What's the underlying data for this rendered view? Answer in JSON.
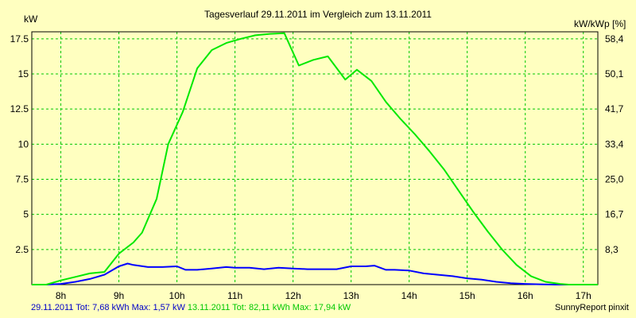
{
  "chart_data": {
    "type": "line",
    "title": "Tagesverlauf 29.11.2011 im Vergleich zum 13.11.2011",
    "ylabel_left": "kW",
    "ylabel_right": "kW/kWp [%]",
    "x_ticks": [
      "8h",
      "9h",
      "10h",
      "11h",
      "12h",
      "13h",
      "14h",
      "15h",
      "16h",
      "17h"
    ],
    "y_ticks_left": [
      "2.5",
      "5",
      "7.5",
      "10",
      "12.5",
      "15",
      "17.5"
    ],
    "y_ticks_right": [
      "8,3",
      "16,7",
      "25,0",
      "33,4",
      "41,7",
      "50,1",
      "58,4"
    ],
    "xlim": [
      7.5,
      17.25
    ],
    "ylim": [
      0,
      18
    ],
    "grid": true,
    "series": [
      {
        "name": "29.11.2011",
        "color": "#0000ff",
        "points": [
          [
            7.5,
            0
          ],
          [
            7.75,
            0
          ],
          [
            8.0,
            0.05
          ],
          [
            8.25,
            0.2
          ],
          [
            8.5,
            0.4
          ],
          [
            8.75,
            0.7
          ],
          [
            9.0,
            1.3
          ],
          [
            9.15,
            1.5
          ],
          [
            9.25,
            1.4
          ],
          [
            9.5,
            1.25
          ],
          [
            9.75,
            1.25
          ],
          [
            10.0,
            1.3
          ],
          [
            10.15,
            1.05
          ],
          [
            10.35,
            1.05
          ],
          [
            10.6,
            1.15
          ],
          [
            10.85,
            1.25
          ],
          [
            11.0,
            1.2
          ],
          [
            11.25,
            1.2
          ],
          [
            11.5,
            1.1
          ],
          [
            11.75,
            1.2
          ],
          [
            12.0,
            1.15
          ],
          [
            12.25,
            1.1
          ],
          [
            12.5,
            1.1
          ],
          [
            12.75,
            1.1
          ],
          [
            13.0,
            1.3
          ],
          [
            13.25,
            1.3
          ],
          [
            13.4,
            1.35
          ],
          [
            13.6,
            1.05
          ],
          [
            13.75,
            1.05
          ],
          [
            14.0,
            1.0
          ],
          [
            14.25,
            0.8
          ],
          [
            14.5,
            0.7
          ],
          [
            14.75,
            0.6
          ],
          [
            15.0,
            0.45
          ],
          [
            15.25,
            0.35
          ],
          [
            15.5,
            0.2
          ],
          [
            15.75,
            0.1
          ],
          [
            16.0,
            0.05
          ],
          [
            16.25,
            0.02
          ],
          [
            16.5,
            0
          ],
          [
            17.25,
            0
          ]
        ]
      },
      {
        "name": "13.11.2011",
        "color": "#00e800",
        "points": [
          [
            7.5,
            0
          ],
          [
            7.75,
            0
          ],
          [
            8.0,
            0.3
          ],
          [
            8.25,
            0.55
          ],
          [
            8.5,
            0.8
          ],
          [
            8.75,
            0.9
          ],
          [
            9.0,
            2.2
          ],
          [
            9.25,
            3.0
          ],
          [
            9.4,
            3.7
          ],
          [
            9.65,
            6.1
          ],
          [
            9.85,
            10.0
          ],
          [
            10.1,
            12.3
          ],
          [
            10.35,
            15.4
          ],
          [
            10.6,
            16.7
          ],
          [
            10.85,
            17.2
          ],
          [
            11.1,
            17.5
          ],
          [
            11.35,
            17.75
          ],
          [
            11.6,
            17.85
          ],
          [
            11.85,
            17.9
          ],
          [
            12.1,
            15.6
          ],
          [
            12.35,
            16.0
          ],
          [
            12.6,
            16.25
          ],
          [
            12.9,
            14.6
          ],
          [
            13.1,
            15.3
          ],
          [
            13.35,
            14.5
          ],
          [
            13.6,
            13.0
          ],
          [
            13.85,
            11.8
          ],
          [
            14.1,
            10.7
          ],
          [
            14.35,
            9.5
          ],
          [
            14.6,
            8.2
          ],
          [
            14.85,
            6.7
          ],
          [
            15.1,
            5.2
          ],
          [
            15.35,
            3.8
          ],
          [
            15.6,
            2.5
          ],
          [
            15.85,
            1.4
          ],
          [
            16.1,
            0.6
          ],
          [
            16.35,
            0.2
          ],
          [
            16.6,
            0.05
          ],
          [
            16.75,
            0
          ],
          [
            17.25,
            0
          ]
        ]
      }
    ]
  },
  "footer": {
    "blue_text": "29.11.2011 Tot: 7,68 kWh Max: 1,57 kW",
    "green_text": "13.11.2011 Tot: 82,11 kWh Max: 17,94 kW",
    "credit": "SunnyReport pinxit"
  }
}
